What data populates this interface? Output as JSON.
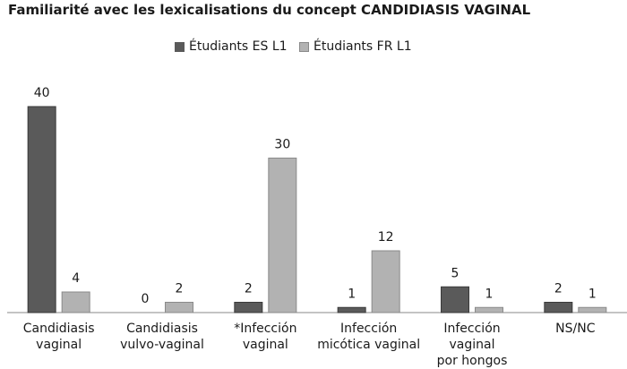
{
  "chart_data": {
    "type": "bar",
    "title": "Familiarité avec les lexicalisations du concept CANDIDIASIS VAGINAL",
    "categories": [
      [
        "Candidiasis",
        "vaginal"
      ],
      [
        "Candidiasis",
        "vulvo-vaginal"
      ],
      [
        "*Infección",
        "vaginal"
      ],
      [
        "Infección",
        "micótica vaginal"
      ],
      [
        "Infección vaginal",
        "por hongos"
      ],
      [
        "NS/NC"
      ]
    ],
    "series": [
      {
        "name": "Étudiants ES L1",
        "color": "#5a5a5a",
        "values": [
          40,
          0,
          2,
          1,
          5,
          2
        ]
      },
      {
        "name": "Étudiants FR L1",
        "color": "#b2b2b2",
        "values": [
          4,
          2,
          30,
          12,
          1,
          1
        ]
      }
    ],
    "ylim": [
      0,
      40
    ],
    "grid": false,
    "legend_position": "top-center",
    "data_labels": true
  }
}
